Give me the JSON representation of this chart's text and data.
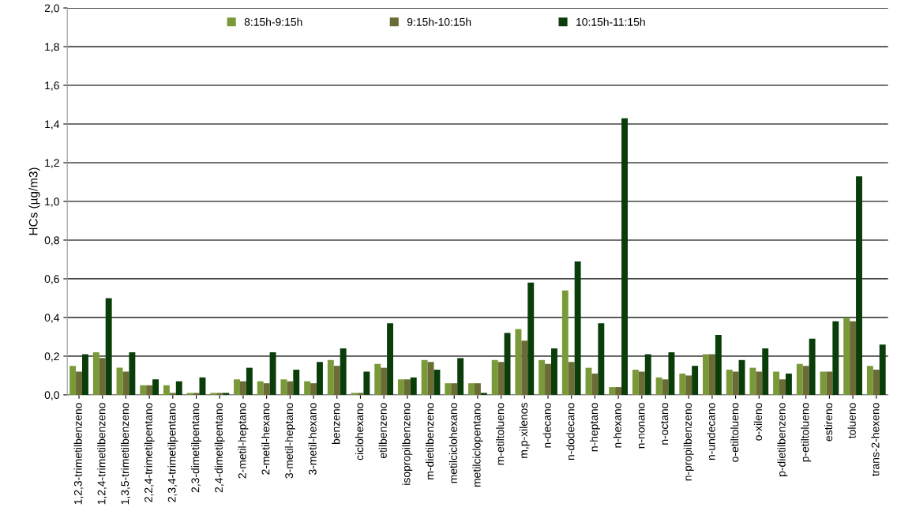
{
  "chart_data": {
    "type": "bar",
    "ylabel": "HCs (µg/m3)",
    "categories": [
      "1,2,3-trimetilbenzeno",
      "1,2,4-trimetilbenzeno",
      "1,3,5-trimetilbenzeno",
      "2,2,4-trimetilpentano",
      "2,3,4-trimetilpentano",
      "2,3-dimetilpentano",
      "2,4-dimetilpentano",
      "2-metil-heptano",
      "2-metil-hexano",
      "3-metil-heptano",
      "3-metil-hexano",
      "benzeno",
      "ciclohexano",
      "etilbenzeno",
      "isopropilbenzeno",
      "m-dietilbenzeno",
      "metilciclohexano",
      "metilciclopentano",
      "m-etiltolueno",
      "m,p-xilenos",
      "n-decano",
      "n-dodecano",
      "n-heptano",
      "n-hexano",
      "n-nonano",
      "n-octano",
      "n-propilbenzeno",
      "n-undecano",
      "o-etiltolueno",
      "o-xileno",
      "p-dietilbenzeno",
      "p-etiltolueno",
      "estireno",
      "tolueno",
      "trans-2-hexeno"
    ],
    "series": [
      {
        "name": "8:15h-9:15h",
        "color": "#7a9a3a",
        "values": [
          0.15,
          0.22,
          0.14,
          0.05,
          0.05,
          0.01,
          0.01,
          0.08,
          0.07,
          0.08,
          0.07,
          0.18,
          0.01,
          0.16,
          0.08,
          0.18,
          0.06,
          0.06,
          0.18,
          0.34,
          0.18,
          0.54,
          0.14,
          0.04,
          0.13,
          0.09,
          0.11,
          0.21,
          0.13,
          0.14,
          0.12,
          0.16,
          0.12,
          0.4,
          0.15
        ]
      },
      {
        "name": "9:15h-10:15h",
        "color": "#6b6b35",
        "values": [
          0.12,
          0.19,
          0.12,
          0.05,
          0.01,
          0.01,
          0.01,
          0.07,
          0.06,
          0.07,
          0.06,
          0.15,
          0.01,
          0.14,
          0.08,
          0.17,
          0.06,
          0.06,
          0.17,
          0.28,
          0.16,
          0.17,
          0.11,
          0.04,
          0.12,
          0.08,
          0.1,
          0.21,
          0.12,
          0.12,
          0.08,
          0.15,
          0.12,
          0.38,
          0.13
        ]
      },
      {
        "name": "10:15h-11:15h",
        "color": "#0a3d0a",
        "values": [
          0.21,
          0.5,
          0.22,
          0.08,
          0.07,
          0.09,
          0.01,
          0.14,
          0.22,
          0.13,
          0.17,
          0.24,
          0.12,
          0.37,
          0.09,
          0.13,
          0.19,
          0.01,
          0.32,
          0.58,
          0.24,
          0.69,
          0.37,
          1.43,
          0.21,
          0.22,
          0.15,
          0.31,
          0.18,
          0.24,
          0.11,
          0.29,
          0.38,
          1.13,
          0.26
        ]
      }
    ],
    "ylim": [
      0,
      2.0
    ],
    "yticks": [
      {
        "value": 0,
        "label": "0,0"
      },
      {
        "value": 0.2,
        "label": "0,2"
      },
      {
        "value": 0.4,
        "label": "0,4"
      },
      {
        "value": 0.6,
        "label": "0,6"
      },
      {
        "value": 0.8,
        "label": "0,8"
      },
      {
        "value": 1.0,
        "label": "1,0"
      },
      {
        "value": 1.2,
        "label": "1,2"
      },
      {
        "value": 1.4,
        "label": "1,4"
      },
      {
        "value": 1.6,
        "label": "1,6"
      },
      {
        "value": 1.8,
        "label": "1,8"
      },
      {
        "value": 2.0,
        "label": "2,0"
      }
    ],
    "grid": "y",
    "legend": "top"
  }
}
